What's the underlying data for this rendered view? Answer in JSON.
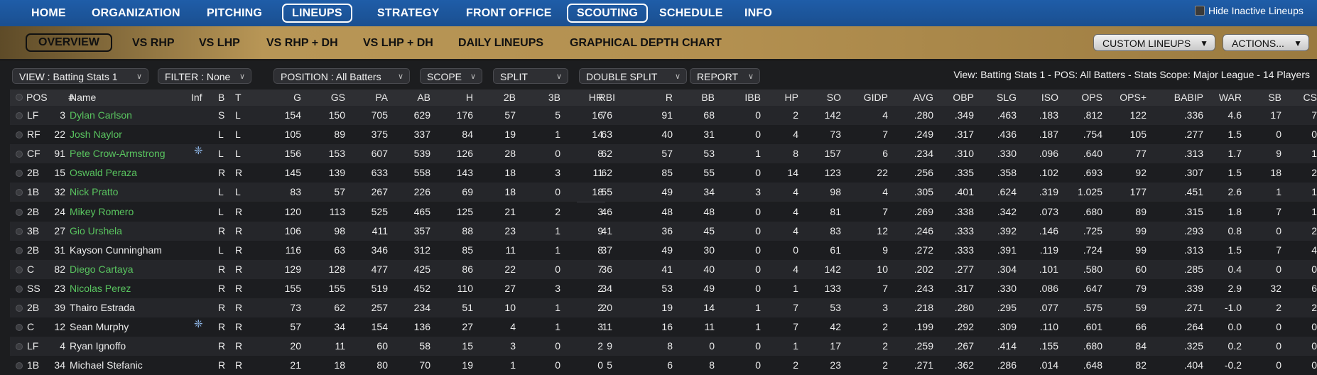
{
  "topnav": {
    "items": [
      "HOME",
      "ORGANIZATION",
      "PITCHING",
      "LINEUPS",
      "STRATEGY",
      "FRONT OFFICE",
      "SCOUTING",
      "SCHEDULE",
      "INFO"
    ],
    "hide_inactive_label": "Hide Inactive Lineups"
  },
  "subnav": {
    "items": [
      "OVERVIEW",
      "VS RHP",
      "VS LHP",
      "VS RHP + DH",
      "VS LHP + DH",
      "DAILY LINEUPS",
      "GRAPHICAL DEPTH CHART"
    ],
    "custom_lineups": "CUSTOM LINEUPS",
    "actions": "ACTIONS..."
  },
  "filters": {
    "view": "VIEW : Batting Stats 1",
    "filter": "FILTER : None",
    "position": "POSITION : All Batters",
    "scope": "SCOPE",
    "split": "SPLIT",
    "double_split": "DOUBLE SPLIT",
    "report": "REPORT",
    "summary": "View: Batting Stats 1 - POS: All Batters - Stats Scope: Major League - 14 Players"
  },
  "table": {
    "columns": [
      "POS",
      "#",
      "Name",
      "Inf",
      "B",
      "T",
      "G",
      "GS",
      "PA",
      "AB",
      "H",
      "2B",
      "3B",
      "HR",
      "RBI",
      "R",
      "BB",
      "IBB",
      "HP",
      "SO",
      "GIDP",
      "AVG",
      "OBP",
      "SLG",
      "ISO",
      "OPS",
      "OPS+",
      "BABIP",
      "WAR",
      "SB",
      "CS"
    ],
    "rows": [
      {
        "pos": "LF",
        "num": "3",
        "name": "Dylan Carlson",
        "green": true,
        "inj": false,
        "b": "S",
        "t": "L",
        "g": "154",
        "gs": "150",
        "pa": "705",
        "ab": "629",
        "h": "176",
        "d": "57",
        "tr": "5",
        "hr": "16",
        "rbi": "76",
        "r": "91",
        "bb": "68",
        "ibb": "0",
        "hp": "2",
        "so": "142",
        "gidp": "4",
        "avg": ".280",
        "obp": ".349",
        "slg": ".463",
        "iso": ".183",
        "ops": ".812",
        "opsp": "122",
        "babip": ".336",
        "war": "4.6",
        "sb": "17",
        "cs": "7"
      },
      {
        "pos": "RF",
        "num": "22",
        "name": "Josh Naylor",
        "green": true,
        "inj": false,
        "b": "L",
        "t": "L",
        "g": "105",
        "gs": "89",
        "pa": "375",
        "ab": "337",
        "h": "84",
        "d": "19",
        "tr": "1",
        "hr": "14",
        "rbi": "63",
        "r": "40",
        "bb": "31",
        "ibb": "0",
        "hp": "4",
        "so": "73",
        "gidp": "7",
        "avg": ".249",
        "obp": ".317",
        "slg": ".436",
        "iso": ".187",
        "ops": ".754",
        "opsp": "105",
        "babip": ".277",
        "war": "1.5",
        "sb": "0",
        "cs": "0"
      },
      {
        "pos": "CF",
        "num": "91",
        "name": "Pete Crow-Armstrong",
        "green": true,
        "inj": true,
        "b": "L",
        "t": "L",
        "g": "156",
        "gs": "153",
        "pa": "607",
        "ab": "539",
        "h": "126",
        "d": "28",
        "tr": "0",
        "hr": "8",
        "rbi": "62",
        "r": "57",
        "bb": "53",
        "ibb": "1",
        "hp": "8",
        "so": "157",
        "gidp": "6",
        "avg": ".234",
        "obp": ".310",
        "slg": ".330",
        "iso": ".096",
        "ops": ".640",
        "opsp": "77",
        "babip": ".313",
        "war": "1.7",
        "sb": "9",
        "cs": "1"
      },
      {
        "pos": "2B",
        "num": "15",
        "name": "Oswald Peraza",
        "green": true,
        "inj": false,
        "b": "R",
        "t": "R",
        "g": "145",
        "gs": "139",
        "pa": "633",
        "ab": "558",
        "h": "143",
        "d": "18",
        "tr": "3",
        "hr": "11",
        "rbi": "62",
        "r": "85",
        "bb": "55",
        "ibb": "0",
        "hp": "14",
        "so": "123",
        "gidp": "22",
        "avg": ".256",
        "obp": ".335",
        "slg": ".358",
        "iso": ".102",
        "ops": ".693",
        "opsp": "92",
        "babip": ".307",
        "war": "1.5",
        "sb": "18",
        "cs": "2"
      },
      {
        "pos": "1B",
        "num": "32",
        "name": "Nick Pratto",
        "green": true,
        "inj": false,
        "b": "L",
        "t": "L",
        "g": "83",
        "gs": "57",
        "pa": "267",
        "ab": "226",
        "h": "69",
        "d": "18",
        "tr": "0",
        "hr": "18",
        "rbi": "55",
        "r": "49",
        "bb": "34",
        "ibb": "3",
        "hp": "4",
        "so": "98",
        "gidp": "4",
        "avg": ".305",
        "obp": ".401",
        "slg": ".624",
        "iso": ".319",
        "ops": "1.025",
        "opsp": "177",
        "babip": ".451",
        "war": "2.6",
        "sb": "1",
        "cs": "1"
      },
      {
        "pos": "2B",
        "num": "24",
        "name": "Mikey Romero",
        "green": true,
        "inj": false,
        "b": "L",
        "t": "R",
        "g": "120",
        "gs": "113",
        "pa": "525",
        "ab": "465",
        "h": "125",
        "d": "21",
        "tr": "2",
        "hr": "3",
        "rbi": "46",
        "r": "48",
        "bb": "48",
        "ibb": "0",
        "hp": "4",
        "so": "81",
        "gidp": "7",
        "avg": ".269",
        "obp": ".338",
        "slg": ".342",
        "iso": ".073",
        "ops": ".680",
        "opsp": "89",
        "babip": ".315",
        "war": "1.8",
        "sb": "7",
        "cs": "1"
      },
      {
        "pos": "3B",
        "num": "27",
        "name": "Gio Urshela",
        "green": true,
        "inj": false,
        "b": "R",
        "t": "R",
        "g": "106",
        "gs": "98",
        "pa": "411",
        "ab": "357",
        "h": "88",
        "d": "23",
        "tr": "1",
        "hr": "9",
        "rbi": "41",
        "r": "36",
        "bb": "45",
        "ibb": "0",
        "hp": "4",
        "so": "83",
        "gidp": "12",
        "avg": ".246",
        "obp": ".333",
        "slg": ".392",
        "iso": ".146",
        "ops": ".725",
        "opsp": "99",
        "babip": ".293",
        "war": "0.8",
        "sb": "0",
        "cs": "2"
      },
      {
        "pos": "2B",
        "num": "31",
        "name": "Kayson Cunningham",
        "green": false,
        "inj": false,
        "b": "L",
        "t": "R",
        "g": "116",
        "gs": "63",
        "pa": "346",
        "ab": "312",
        "h": "85",
        "d": "11",
        "tr": "1",
        "hr": "8",
        "rbi": "37",
        "r": "49",
        "bb": "30",
        "ibb": "0",
        "hp": "0",
        "so": "61",
        "gidp": "9",
        "avg": ".272",
        "obp": ".333",
        "slg": ".391",
        "iso": ".119",
        "ops": ".724",
        "opsp": "99",
        "babip": ".313",
        "war": "1.5",
        "sb": "7",
        "cs": "4"
      },
      {
        "pos": "C",
        "num": "82",
        "name": "Diego Cartaya",
        "green": true,
        "inj": false,
        "b": "R",
        "t": "R",
        "g": "129",
        "gs": "128",
        "pa": "477",
        "ab": "425",
        "h": "86",
        "d": "22",
        "tr": "0",
        "hr": "7",
        "rbi": "36",
        "r": "41",
        "bb": "40",
        "ibb": "0",
        "hp": "4",
        "so": "142",
        "gidp": "10",
        "avg": ".202",
        "obp": ".277",
        "slg": ".304",
        "iso": ".101",
        "ops": ".580",
        "opsp": "60",
        "babip": ".285",
        "war": "0.4",
        "sb": "0",
        "cs": "0"
      },
      {
        "pos": "SS",
        "num": "23",
        "name": "Nicolas Perez",
        "green": true,
        "inj": false,
        "b": "R",
        "t": "R",
        "g": "155",
        "gs": "155",
        "pa": "519",
        "ab": "452",
        "h": "110",
        "d": "27",
        "tr": "3",
        "hr": "2",
        "rbi": "34",
        "r": "53",
        "bb": "49",
        "ibb": "0",
        "hp": "1",
        "so": "133",
        "gidp": "7",
        "avg": ".243",
        "obp": ".317",
        "slg": ".330",
        "iso": ".086",
        "ops": ".647",
        "opsp": "79",
        "babip": ".339",
        "war": "2.9",
        "sb": "32",
        "cs": "6"
      },
      {
        "pos": "2B",
        "num": "39",
        "name": "Thairo Estrada",
        "green": false,
        "inj": false,
        "b": "R",
        "t": "R",
        "g": "73",
        "gs": "62",
        "pa": "257",
        "ab": "234",
        "h": "51",
        "d": "10",
        "tr": "1",
        "hr": "2",
        "rbi": "20",
        "r": "19",
        "bb": "14",
        "ibb": "1",
        "hp": "7",
        "so": "53",
        "gidp": "3",
        "avg": ".218",
        "obp": ".280",
        "slg": ".295",
        "iso": ".077",
        "ops": ".575",
        "opsp": "59",
        "babip": ".271",
        "war": "-1.0",
        "sb": "2",
        "cs": "2"
      },
      {
        "pos": "C",
        "num": "12",
        "name": "Sean Murphy",
        "green": false,
        "inj": true,
        "b": "R",
        "t": "R",
        "g": "57",
        "gs": "34",
        "pa": "154",
        "ab": "136",
        "h": "27",
        "d": "4",
        "tr": "1",
        "hr": "3",
        "rbi": "11",
        "r": "16",
        "bb": "11",
        "ibb": "1",
        "hp": "7",
        "so": "42",
        "gidp": "2",
        "avg": ".199",
        "obp": ".292",
        "slg": ".309",
        "iso": ".110",
        "ops": ".601",
        "opsp": "66",
        "babip": ".264",
        "war": "0.0",
        "sb": "0",
        "cs": "0"
      },
      {
        "pos": "LF",
        "num": "4",
        "name": "Ryan Ignoffo",
        "green": false,
        "inj": false,
        "b": "R",
        "t": "R",
        "g": "20",
        "gs": "11",
        "pa": "60",
        "ab": "58",
        "h": "15",
        "d": "3",
        "tr": "0",
        "hr": "2",
        "rbi": "9",
        "r": "8",
        "bb": "0",
        "ibb": "0",
        "hp": "1",
        "so": "17",
        "gidp": "2",
        "avg": ".259",
        "obp": ".267",
        "slg": ".414",
        "iso": ".155",
        "ops": ".680",
        "opsp": "84",
        "babip": ".325",
        "war": "0.2",
        "sb": "0",
        "cs": "0"
      },
      {
        "pos": "1B",
        "num": "34",
        "name": "Michael Stefanic",
        "green": false,
        "inj": false,
        "b": "R",
        "t": "R",
        "g": "21",
        "gs": "18",
        "pa": "80",
        "ab": "70",
        "h": "19",
        "d": "1",
        "tr": "0",
        "hr": "0",
        "rbi": "5",
        "r": "6",
        "bb": "8",
        "ibb": "0",
        "hp": "2",
        "so": "23",
        "gidp": "2",
        "avg": ".271",
        "obp": ".362",
        "slg": ".286",
        "iso": ".014",
        "ops": ".648",
        "opsp": "82",
        "babip": ".404",
        "war": "-0.2",
        "sb": "0",
        "cs": "0"
      }
    ]
  },
  "colors": {
    "accent_blue": "#1f5da8",
    "gold": "#b89656",
    "green_name": "#59c45f"
  }
}
